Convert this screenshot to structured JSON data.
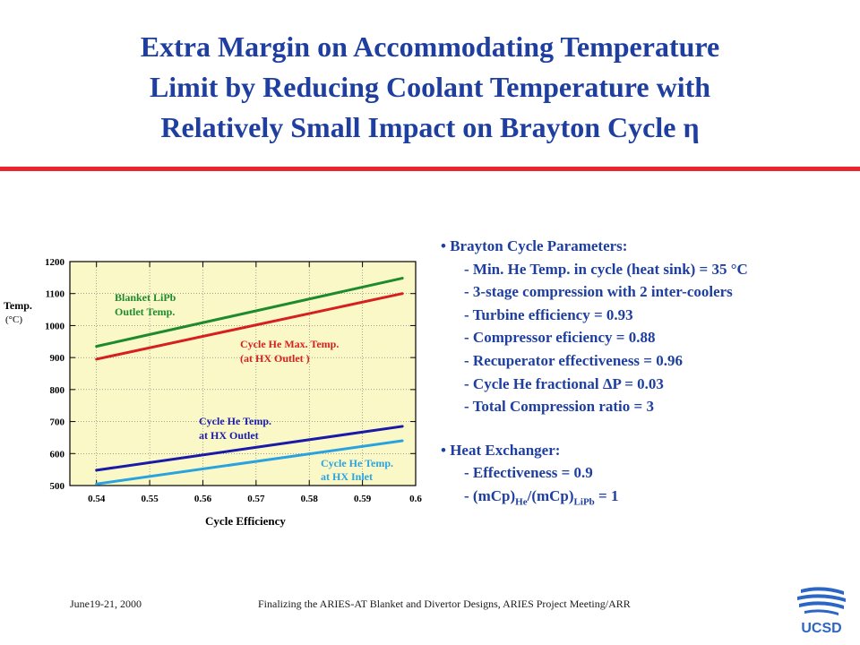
{
  "slide": {
    "title_lines": [
      "Extra Margin on Accommodating Temperature",
      "Limit by Reducing Coolant Temperature with",
      "Relatively Small Impact on Brayton Cycle η"
    ]
  },
  "bullets": {
    "brayton_heading": "• Brayton Cycle Parameters:",
    "brayton_items": [
      "- Min. He Temp. in cycle (heat sink) = 35 °C",
      "- 3-stage compression with 2 inter-coolers",
      "- Turbine efficiency = 0.93",
      "- Compressor eficiency = 0.88",
      "- Recuperator effectiveness = 0.96",
      "- Cycle He fractional ΔP = 0.03",
      "- Total Compression ratio = 3"
    ],
    "hx_heading": "• Heat Exchanger:",
    "hx_item1": "- Effectiveness = 0.9",
    "hx_item2": {
      "prefix": "- (mCp)",
      "sub1": "He",
      "mid": "/(mCp)",
      "sub2": "LiPb",
      "suffix": " = 1"
    }
  },
  "footer": {
    "date": "June19-21, 2000",
    "center": "Finalizing the ARIES-AT Blanket and Divertor Designs, ARIES Project Meeting/ARR",
    "logo_text": "UCSD"
  },
  "colors": {
    "title": "#1f3fa0",
    "rule": "#e8262b",
    "plot_bg": "#fbf8c8",
    "green": "#1e8a2e",
    "red": "#d62020",
    "darkblue": "#1a1aa8",
    "lightblue": "#29a3e0"
  },
  "chart_data": {
    "type": "line",
    "xlabel": "Cycle Efficiency",
    "ylabel": "Temp.",
    "ylabel_unit": "(°C)",
    "xlim": [
      0.535,
      0.6
    ],
    "ylim": [
      500,
      1200
    ],
    "x_ticks": [
      "0.54",
      "0.55",
      "0.56",
      "0.57",
      "0.58",
      "0.59",
      "0.6"
    ],
    "y_ticks": [
      "500",
      "600",
      "700",
      "800",
      "900",
      "1000",
      "1100",
      "1200"
    ],
    "series": [
      {
        "name_lines": [
          "Blanket LiPb",
          "Outlet Temp."
        ],
        "color": "#1e8a2e",
        "x": [
          0.54,
          0.5975
        ],
        "y": [
          935,
          1148
        ]
      },
      {
        "name_lines": [
          "Cycle He Max. Temp.",
          "(at HX Outlet )"
        ],
        "color": "#d62020",
        "x": [
          0.54,
          0.5975
        ],
        "y": [
          895,
          1100
        ]
      },
      {
        "name_lines": [
          "Cycle He Temp.",
          "at HX Outlet"
        ],
        "color": "#1a1aa8",
        "x": [
          0.54,
          0.5975
        ],
        "y": [
          548,
          685
        ]
      },
      {
        "name_lines": [
          "Cycle He Temp.",
          "at HX Inlet"
        ],
        "color": "#29a3e0",
        "x": [
          0.54,
          0.5975
        ],
        "y": [
          505,
          640
        ]
      }
    ]
  }
}
